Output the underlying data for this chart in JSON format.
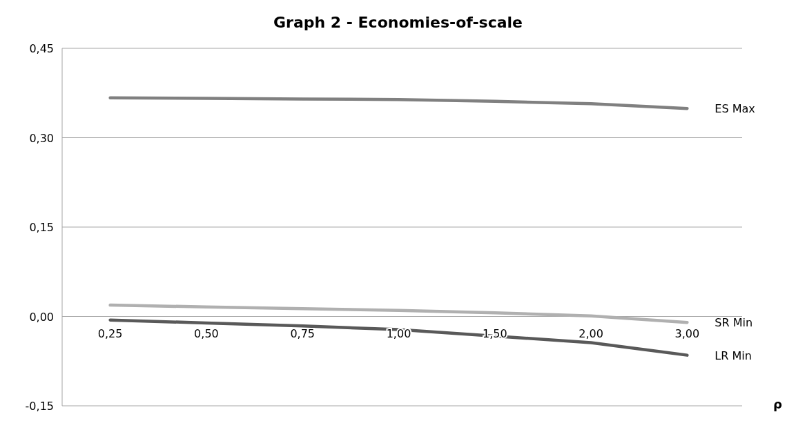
{
  "chart_data": {
    "type": "line",
    "title": "Graph 2 - Economies-of-scale",
    "xlabel": "ρ",
    "categories": [
      "0,25",
      "0,50",
      "0,75",
      "1,00",
      "1,50",
      "2,00",
      "3,00"
    ],
    "series": [
      {
        "name": "ES Max",
        "color": "#808080",
        "values": [
          0.367,
          0.366,
          0.365,
          0.364,
          0.361,
          0.357,
          0.349
        ]
      },
      {
        "name": "SR Min",
        "color": "#b0b0b0",
        "values": [
          0.019,
          0.016,
          0.013,
          0.01,
          0.006,
          0.001,
          -0.01
        ]
      },
      {
        "name": "LR Min",
        "color": "#595959",
        "values": [
          -0.006,
          -0.011,
          -0.016,
          -0.022,
          -0.033,
          -0.044,
          -0.065
        ]
      }
    ],
    "ylim": [
      -0.15,
      0.45
    ],
    "yticks": [
      {
        "value": -0.15,
        "label": "-0,15"
      },
      {
        "value": 0,
        "label": "0,00"
      },
      {
        "value": 0.15,
        "label": "0,15"
      },
      {
        "value": 0.3,
        "label": "0,30"
      },
      {
        "value": 0.45,
        "label": "0,45"
      }
    ],
    "grid": "y",
    "marker": "none",
    "line_style": "solid"
  }
}
